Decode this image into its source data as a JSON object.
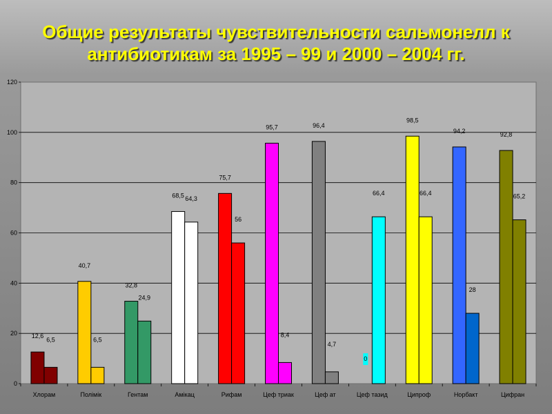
{
  "title": {
    "line1": "Общие результаты чувствительности сальмонелл к",
    "line2": "антибиотикам за 1995 – 99 и 2000 – 2004 гг."
  },
  "chart_data": {
    "type": "bar",
    "categories": [
      "Хлорам",
      "Полімік",
      "Гентам",
      "Амікац",
      "Рифам",
      "Цеф триак",
      "Цеф ат",
      "Цеф тазид",
      "Ципроф",
      "Норбакт",
      "Цифран"
    ],
    "series": [
      {
        "values": [
          12.6,
          40.7,
          32.8,
          68.5,
          75.7,
          95.7,
          96.4,
          0,
          98.5,
          94.2,
          92.8
        ],
        "labels": [
          "12,6",
          "40,7",
          "32,8",
          "68,5",
          "75,7",
          "95,7",
          "96,4",
          "0",
          "98,5",
          "94,2",
          "92,8"
        ]
      },
      {
        "values": [
          6.5,
          6.5,
          24.9,
          64.3,
          56,
          8.4,
          4.7,
          66.4,
          66.4,
          28,
          65.2
        ],
        "labels": [
          "6,5",
          "6,5",
          "24,9",
          "64,3",
          "56",
          "8,4",
          "4,7",
          "66,4",
          "66,4",
          "28",
          "65,2"
        ]
      }
    ],
    "colors": [
      [
        "#800000",
        "#800000"
      ],
      [
        "#ffcc00",
        "#ffcc00"
      ],
      [
        "#339966",
        "#339966"
      ],
      [
        "#ffffff",
        "#ffffff"
      ],
      [
        "#ff0000",
        "#ff0000"
      ],
      [
        "#ff00ff",
        "#ff00ff"
      ],
      [
        "#808080",
        "#808080"
      ],
      [
        "#00ffff",
        "#00ffff"
      ],
      [
        "#ffff00",
        "#ffff00"
      ],
      [
        "#3366ff",
        "#0066cc"
      ],
      [
        "#808000",
        "#808000"
      ]
    ],
    "yticks": [
      "0",
      "20",
      "40",
      "60",
      "80",
      "100",
      "120"
    ],
    "ylim": [
      0,
      120
    ],
    "grid": true,
    "legend": "none"
  }
}
